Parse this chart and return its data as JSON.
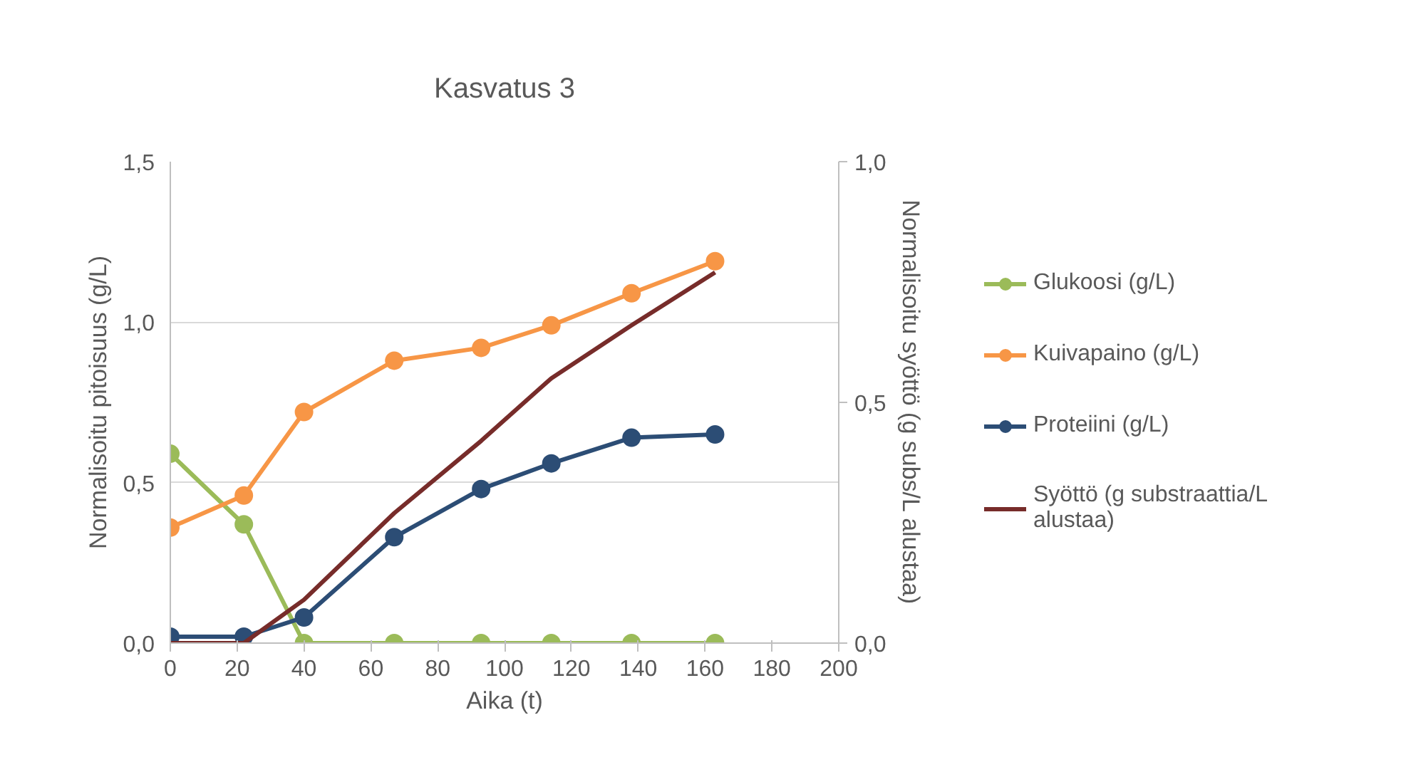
{
  "chart_data": {
    "type": "line",
    "title": "Kasvatus 3",
    "xlabel": "Aika (t)",
    "ylabel": "Normalisoitu pitoisuus (g/L)",
    "y2label": "Normalisoitu syöttö (g subs/L alustaa)",
    "x": [
      0,
      22,
      40,
      67,
      93,
      114,
      138,
      163
    ],
    "series": [
      {
        "name": "Glukoosi (g/L)",
        "color": "#9bbb59",
        "marker": "circle",
        "values": [
          0.59,
          0.37,
          0,
          0,
          0,
          0,
          0,
          0
        ]
      },
      {
        "name": "Kuivapaino (g/L)",
        "color": "#f79646",
        "marker": "circle",
        "values": [
          0.36,
          0.46,
          0.72,
          0.88,
          0.92,
          0.99,
          1.09,
          1.19
        ]
      },
      {
        "name": "Proteiini (g/L)",
        "color": "#2c4d75",
        "marker": "circle",
        "values": [
          0.02,
          0.02,
          0.08,
          0.33,
          0.48,
          0.56,
          0.64,
          0.65
        ]
      },
      {
        "name": "Syöttö (g substraattia/L alustaa)",
        "color": "#772c2a",
        "marker": "none",
        "axis": "y2",
        "values": [
          0,
          0,
          0.09,
          0.27,
          0.42,
          0.55,
          0.66,
          0.77
        ]
      }
    ],
    "xlim": [
      0,
      200
    ],
    "xticks": [
      0,
      20,
      40,
      60,
      80,
      100,
      120,
      140,
      160,
      180,
      200
    ],
    "ylim": [
      0,
      1.5
    ],
    "yticks": [
      {
        "value": 0,
        "label": "0,0"
      },
      {
        "value": 0.5,
        "label": "0,5"
      },
      {
        "value": 1,
        "label": "1,0"
      },
      {
        "value": 1.5,
        "label": "1,5"
      }
    ],
    "y2lim": [
      0,
      1
    ],
    "y2ticks": [
      {
        "value": 0,
        "label": "0,0"
      },
      {
        "value": 0.5,
        "label": "0,5"
      },
      {
        "value": 1,
        "label": "1,0"
      }
    ],
    "grid": "y",
    "legend": "right",
    "line_style": "solid"
  }
}
